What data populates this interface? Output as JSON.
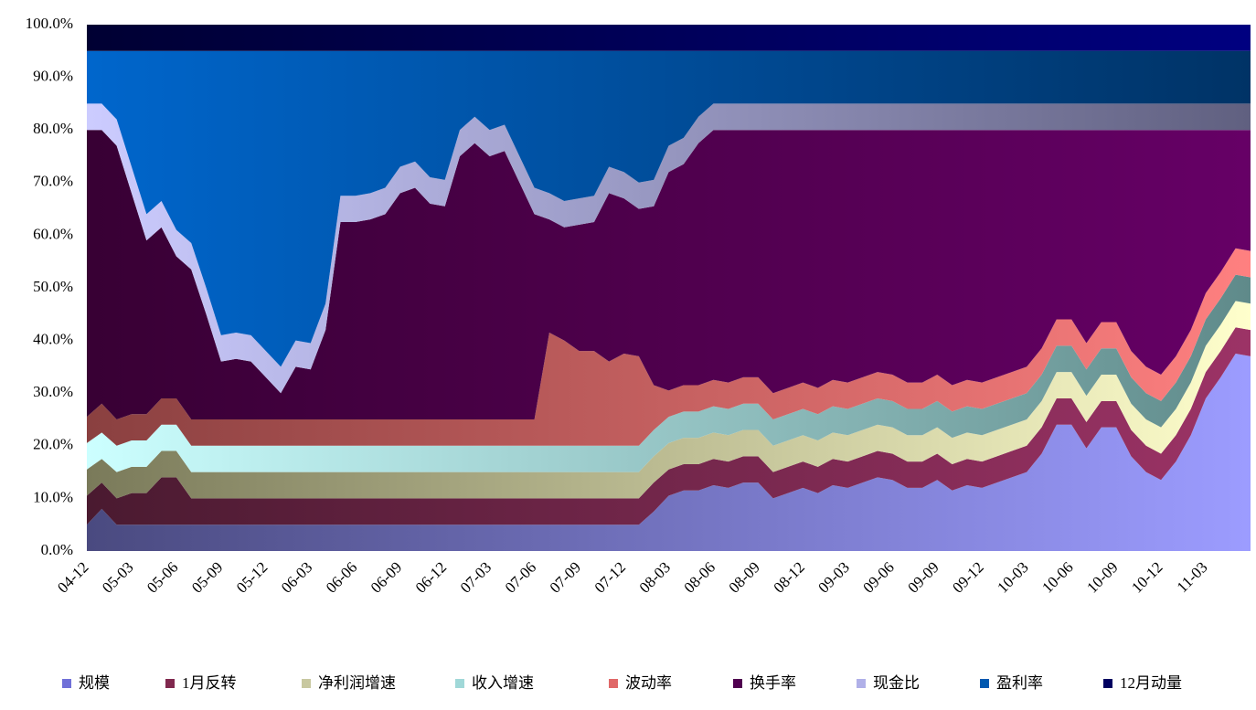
{
  "chart_data": {
    "type": "stacked_area",
    "categories": [
      "04-12",
      null,
      null,
      "05-03",
      null,
      null,
      "05-06",
      null,
      null,
      "05-09",
      null,
      null,
      "05-12",
      null,
      null,
      "06-03",
      null,
      null,
      "06-06",
      null,
      null,
      "06-09",
      null,
      null,
      "06-12",
      null,
      null,
      "07-03",
      null,
      null,
      "07-06",
      null,
      null,
      "07-09",
      null,
      null,
      "07-12",
      null,
      null,
      "08-03",
      null,
      null,
      "08-06",
      null,
      null,
      "08-09",
      null,
      null,
      "08-12",
      null,
      null,
      "09-03",
      null,
      null,
      "09-06",
      null,
      null,
      "09-09",
      null,
      null,
      "09-12",
      null,
      null,
      "10-03",
      null,
      null,
      "10-06",
      null,
      null,
      "10-09",
      null,
      null,
      "10-12",
      null,
      null,
      "11-03",
      null,
      null,
      null
    ],
    "ylim": [
      0,
      100
    ],
    "yticks": [
      {
        "value": 0,
        "label": "0.0%"
      },
      {
        "value": 10,
        "label": "10.0%"
      },
      {
        "value": 20,
        "label": "20.0%"
      },
      {
        "value": 30,
        "label": "30.0%"
      },
      {
        "value": 40,
        "label": "40.0%"
      },
      {
        "value": 50,
        "label": "50.0%"
      },
      {
        "value": 60,
        "label": "60.0%"
      },
      {
        "value": 70,
        "label": "70.0%"
      },
      {
        "value": 80,
        "label": "80.0%"
      },
      {
        "value": 90,
        "label": "90.0%"
      },
      {
        "value": 100,
        "label": "100.0%"
      }
    ],
    "legend": "bottom",
    "series": [
      {
        "name": "规模",
        "color": "#7070d8",
        "gradient": [
          "#4a4a80",
          "#9c9cff"
        ],
        "values": [
          5,
          8,
          5,
          5,
          5,
          5,
          5,
          5,
          5,
          5,
          5,
          5,
          5,
          5,
          5,
          5,
          5,
          5,
          5,
          5,
          5,
          5,
          5,
          5,
          5,
          5,
          5,
          5,
          5,
          5,
          5,
          5,
          5,
          5,
          5,
          5,
          5,
          5,
          7.5,
          10.5,
          11.5,
          11.5,
          12.5,
          12,
          13,
          13,
          10,
          11,
          12,
          11,
          12.5,
          12,
          13,
          14,
          13.5,
          12,
          12,
          13.5,
          11.5,
          12.5,
          12,
          13,
          14,
          15,
          18.5,
          24,
          24,
          19.5,
          23.5,
          23.5,
          18,
          15,
          13.5,
          17,
          22,
          29,
          33,
          37.5,
          37
        ]
      },
      {
        "name": "1月反转",
        "color": "#80284e",
        "gradient": [
          "#4a1a30",
          "#9c3366"
        ],
        "values": [
          5.5,
          5,
          5,
          6,
          6,
          9,
          9,
          5,
          5,
          5,
          5,
          5,
          5,
          5,
          5,
          5,
          5,
          5,
          5,
          5,
          5,
          5,
          5,
          5,
          5,
          5,
          5,
          5,
          5,
          5,
          5,
          5,
          5,
          5,
          5,
          5,
          5,
          5,
          5.5,
          5,
          5,
          5,
          5,
          5,
          5,
          5,
          5,
          5,
          5,
          5,
          5,
          5,
          5,
          5,
          5,
          5,
          5,
          5,
          5,
          5,
          5,
          5,
          5,
          5,
          5,
          5,
          5,
          5,
          5,
          5,
          5,
          5,
          5,
          5,
          5,
          5,
          5,
          5,
          5
        ]
      },
      {
        "name": "净利润增速",
        "color": "#c8c8a0",
        "gradient": [
          "#7a7a5a",
          "#ffffcc"
        ],
        "values": [
          5,
          4.5,
          5,
          5,
          5,
          5,
          5,
          5,
          5,
          5,
          5,
          5,
          5,
          5,
          5,
          5,
          5,
          5,
          5,
          5,
          5,
          5,
          5,
          5,
          5,
          5,
          5,
          5,
          5,
          5,
          5,
          5,
          5,
          5,
          5,
          5,
          5,
          5,
          5,
          5,
          5,
          5,
          5,
          5,
          5,
          5,
          5,
          5,
          5,
          5,
          5,
          5,
          5,
          5,
          5,
          5,
          5,
          5,
          5,
          5,
          5,
          5,
          5,
          5,
          5,
          5,
          5,
          5,
          5,
          5,
          5,
          5,
          5,
          5,
          5,
          5,
          5,
          5,
          5
        ]
      },
      {
        "name": "收入增速",
        "color": "#a0d8d8",
        "gradient": [
          "#ccffff",
          "#5f8a8a"
        ],
        "values": [
          5,
          5,
          5,
          5,
          5,
          5,
          5,
          5,
          5,
          5,
          5,
          5,
          5,
          5,
          5,
          5,
          5,
          5,
          5,
          5,
          5,
          5,
          5,
          5,
          5,
          5,
          5,
          5,
          5,
          5,
          5,
          5,
          5,
          5,
          5,
          5,
          5,
          5,
          5,
          5,
          5,
          5,
          5,
          5,
          5,
          5,
          5,
          5,
          5,
          5,
          5,
          5,
          5,
          5,
          5,
          5,
          5,
          5,
          5,
          5,
          5,
          5,
          5,
          5,
          5,
          5,
          5,
          5,
          5,
          5,
          5,
          5,
          5,
          5,
          5,
          5,
          5,
          5,
          5
        ]
      },
      {
        "name": "波动率",
        "color": "#e06868",
        "gradient": [
          "#8a4040",
          "#ff8080"
        ],
        "values": [
          5,
          5.5,
          5,
          5,
          5,
          5,
          5,
          5,
          5,
          5,
          5,
          5,
          5,
          5,
          5,
          5,
          5,
          5,
          5,
          5,
          5,
          5,
          5,
          5,
          5,
          5,
          5,
          5,
          5,
          5,
          5,
          21.5,
          20,
          18,
          18,
          16,
          17.5,
          17,
          8.5,
          5,
          5,
          5,
          5,
          5,
          5,
          5,
          5,
          5,
          5,
          5,
          5,
          5,
          5,
          5,
          5,
          5,
          5,
          5,
          5,
          5,
          5,
          5,
          5,
          5,
          5,
          5,
          5,
          5,
          5,
          5,
          5,
          5,
          5,
          5,
          5,
          5,
          5,
          5,
          5
        ]
      },
      {
        "name": "换手率",
        "color": "#500050",
        "gradient": [
          "#380034",
          "#660066"
        ],
        "values": [
          54.5,
          52,
          52,
          42,
          33,
          32.5,
          27,
          28.5,
          20,
          11,
          11.5,
          11,
          8,
          5,
          10,
          9.5,
          17,
          37.5,
          37.5,
          38,
          39,
          43,
          44,
          41,
          40.5,
          50,
          52.5,
          50,
          51,
          45,
          39,
          21.5,
          21.5,
          24,
          24.5,
          32,
          29.5,
          28,
          34,
          41.5,
          42,
          46,
          47.5,
          48,
          47,
          47,
          50,
          49,
          48,
          49,
          47.5,
          48,
          47,
          46,
          46.5,
          48,
          48,
          46.5,
          48.5,
          47.5,
          48,
          47,
          46,
          45,
          41.5,
          36,
          36,
          40.5,
          36.5,
          36.5,
          42,
          45,
          46.5,
          43,
          38,
          31,
          27,
          22.5,
          23
        ]
      },
      {
        "name": "现金比",
        "color": "#b0b0e8",
        "gradient": [
          "#ccccff",
          "#606080"
        ],
        "values": [
          5,
          5,
          5,
          5,
          5,
          5,
          5,
          5,
          5,
          5,
          5,
          5,
          5,
          5,
          5,
          5,
          5,
          5,
          5,
          5,
          5,
          5,
          5,
          5,
          5,
          5,
          5,
          5,
          5,
          5,
          5,
          5,
          5,
          5,
          5,
          5,
          5,
          5,
          5,
          5,
          5,
          5,
          5,
          5,
          5,
          5,
          5,
          5,
          5,
          5,
          5,
          5,
          5,
          5,
          5,
          5,
          5,
          5,
          5,
          5,
          5,
          5,
          5,
          5,
          5,
          5,
          5,
          5,
          5,
          5,
          5,
          5,
          5,
          5,
          5,
          5,
          5,
          5,
          5
        ]
      },
      {
        "name": "盈利率",
        "color": "#0058b0",
        "gradient": [
          "#0066cc",
          "#003366"
        ],
        "values": [
          10,
          10,
          13,
          22,
          31,
          28.5,
          34,
          36.5,
          45,
          54,
          53.5,
          54,
          57,
          60,
          55,
          55.5,
          48,
          27.5,
          27.5,
          27,
          26,
          22,
          21,
          24,
          24.5,
          15,
          12.5,
          15,
          14,
          20,
          26,
          27,
          28.5,
          28,
          27.5,
          22,
          23,
          25,
          24.5,
          18,
          16.5,
          12.5,
          10,
          10,
          10,
          10,
          10,
          10,
          10,
          10,
          10,
          10,
          10,
          10,
          10,
          10,
          10,
          10,
          10,
          10,
          10,
          10,
          10,
          10,
          10,
          10,
          10,
          10,
          10,
          10,
          10,
          10,
          10,
          10,
          10,
          10,
          10,
          10,
          10
        ]
      },
      {
        "name": "12月动量",
        "color": "#000060",
        "gradient": [
          "#000033",
          "#000080"
        ],
        "values": [
          5,
          5,
          5,
          5,
          5,
          5,
          5,
          5,
          5,
          5,
          5,
          5,
          5,
          5,
          5,
          5,
          5,
          5,
          5,
          5,
          5,
          5,
          5,
          5,
          5,
          5,
          5,
          5,
          5,
          5,
          5,
          5,
          5,
          5,
          5,
          5,
          5,
          5,
          5,
          5,
          5,
          5,
          5,
          5,
          5,
          5,
          5,
          5,
          5,
          5,
          5,
          5,
          5,
          5,
          5,
          5,
          5,
          5,
          5,
          5,
          5,
          5,
          5,
          5,
          5,
          5,
          5,
          5,
          5,
          5,
          5,
          5,
          5,
          5,
          5,
          5,
          5,
          5,
          5
        ]
      }
    ]
  }
}
